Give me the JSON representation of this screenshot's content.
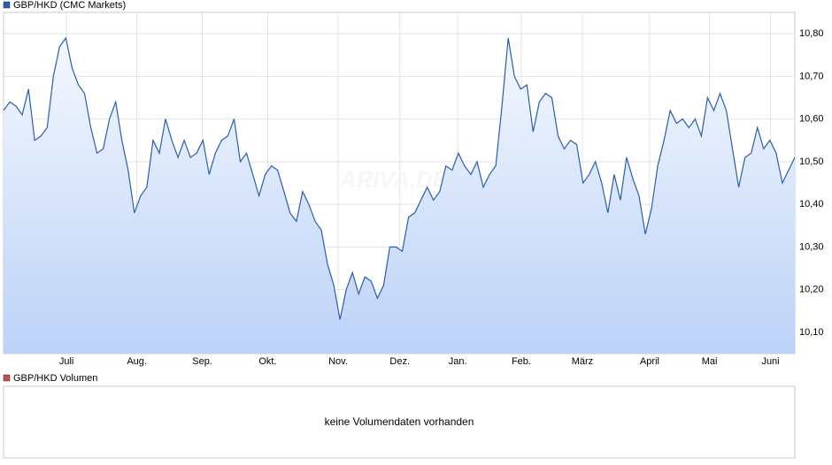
{
  "chart_data": {
    "type": "area",
    "series": [
      {
        "name": "GBP/HKD (CMC Markets)",
        "color": "#2a5db0",
        "values": [
          10.62,
          10.64,
          10.63,
          10.61,
          10.67,
          10.55,
          10.56,
          10.58,
          10.7,
          10.77,
          10.79,
          10.72,
          10.68,
          10.66,
          10.58,
          10.52,
          10.53,
          10.6,
          10.64,
          10.55,
          10.48,
          10.38,
          10.42,
          10.44,
          10.55,
          10.52,
          10.6,
          10.55,
          10.51,
          10.55,
          10.51,
          10.52,
          10.55,
          10.47,
          10.52,
          10.55,
          10.56,
          10.6,
          10.5,
          10.52,
          10.47,
          10.42,
          10.47,
          10.49,
          10.48,
          10.43,
          10.38,
          10.36,
          10.43,
          10.4,
          10.36,
          10.34,
          10.26,
          10.21,
          10.13,
          10.2,
          10.24,
          10.19,
          10.23,
          10.22,
          10.18,
          10.21,
          10.3,
          10.3,
          10.29,
          10.37,
          10.38,
          10.41,
          10.44,
          10.41,
          10.43,
          10.49,
          10.48,
          10.52,
          10.49,
          10.47,
          10.5,
          10.44,
          10.47,
          10.49,
          10.63,
          10.79,
          10.7,
          10.67,
          10.68,
          10.57,
          10.64,
          10.66,
          10.65,
          10.56,
          10.53,
          10.55,
          10.54,
          10.45,
          10.47,
          10.5,
          10.45,
          10.38,
          10.47,
          10.41,
          10.51,
          10.46,
          10.42,
          10.33,
          10.39,
          10.49,
          10.55,
          10.62,
          10.59,
          10.6,
          10.58,
          10.6,
          10.56,
          10.65,
          10.62,
          10.66,
          10.62,
          10.53,
          10.44,
          10.51,
          10.52,
          10.58,
          10.53,
          10.55,
          10.52,
          10.45,
          10.48,
          10.51
        ]
      }
    ],
    "xlim": [
      0,
      127
    ],
    "xticks": [
      {
        "value": 10.1,
        "label": "Juli"
      },
      {
        "value": 21.4,
        "label": "Aug."
      },
      {
        "value": 31.9,
        "label": "Sep."
      },
      {
        "value": 42.4,
        "label": "Okt."
      },
      {
        "value": 53.7,
        "label": "Nov."
      },
      {
        "value": 63.6,
        "label": "Dez."
      },
      {
        "value": 72.9,
        "label": "Jan."
      },
      {
        "value": 83.1,
        "label": "Feb."
      },
      {
        "value": 92.9,
        "label": "März"
      },
      {
        "value": 103.7,
        "label": "April"
      },
      {
        "value": 113.3,
        "label": "Mai"
      },
      {
        "value": 123.1,
        "label": "Juni"
      }
    ],
    "ylim": [
      10.05,
      10.85
    ],
    "yticks": [
      {
        "value": 10.1,
        "label": "10,10"
      },
      {
        "value": 10.2,
        "label": "10,20"
      },
      {
        "value": 10.3,
        "label": "10,30"
      },
      {
        "value": 10.4,
        "label": "10,40"
      },
      {
        "value": 10.5,
        "label": "10,50"
      },
      {
        "value": 10.6,
        "label": "10,60"
      },
      {
        "value": 10.7,
        "label": "10,70"
      },
      {
        "value": 10.8,
        "label": "10,80"
      }
    ],
    "grid": true,
    "watermark": "ARIVA.DE"
  },
  "volume_panel": {
    "legend": "GBP/HKD Volumen",
    "color": "#c0504d",
    "message": "keine Volumendaten vorhanden"
  }
}
